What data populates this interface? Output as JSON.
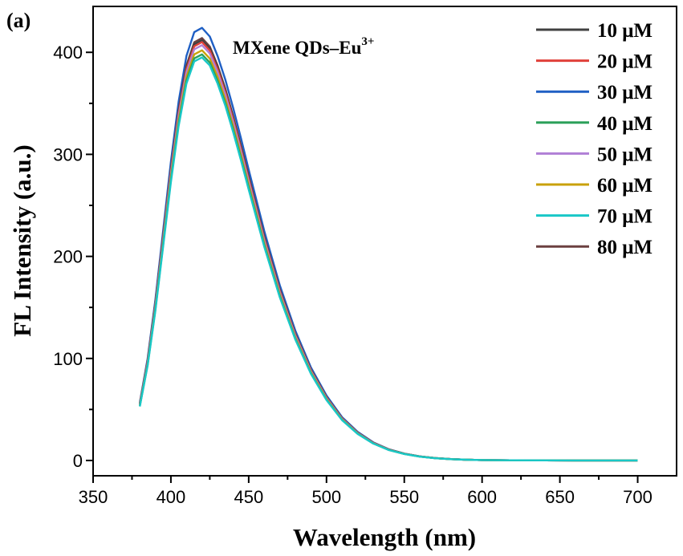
{
  "chart_data": {
    "type": "line",
    "panel_label": "(a)",
    "title": "",
    "xlabel": "Wavelength (nm)",
    "ylabel": "FL Intensity (a.u.)",
    "xlim": [
      350,
      725
    ],
    "ylim": [
      -15,
      445
    ],
    "xticks": [
      350,
      400,
      450,
      500,
      550,
      600,
      650,
      700
    ],
    "yticks": [
      0,
      100,
      200,
      300,
      400
    ],
    "annotation": {
      "text": "MXene QDs–Eu",
      "sup": "3+"
    },
    "legend_position": "top-right",
    "x": [
      380,
      385,
      390,
      395,
      400,
      405,
      410,
      415,
      420,
      425,
      430,
      435,
      440,
      445,
      450,
      460,
      470,
      480,
      490,
      500,
      510,
      520,
      530,
      540,
      550,
      560,
      570,
      580,
      590,
      600,
      620,
      640,
      660,
      680,
      700
    ],
    "base_profile": [
      0.134,
      0.235,
      0.37,
      0.53,
      0.69,
      0.83,
      0.935,
      0.99,
      1.0,
      0.98,
      0.935,
      0.88,
      0.815,
      0.745,
      0.672,
      0.53,
      0.405,
      0.3,
      0.215,
      0.15,
      0.1,
      0.066,
      0.042,
      0.026,
      0.016,
      0.0095,
      0.0055,
      0.0032,
      0.0018,
      0.001,
      0.0004,
      0.00015,
      6e-05,
      2e-05,
      0.0
    ],
    "series": [
      {
        "name": "10 μM",
        "peak": 412,
        "color": "#404040"
      },
      {
        "name": "20 μM",
        "peak": 410,
        "color": "#e0403a"
      },
      {
        "name": "30 μM",
        "peak": 424,
        "color": "#1f5fc4"
      },
      {
        "name": "40 μM",
        "peak": 398,
        "color": "#2ca05a"
      },
      {
        "name": "50 μM",
        "peak": 407,
        "color": "#b07fd6"
      },
      {
        "name": "60 μM",
        "peak": 402,
        "color": "#c9a10a"
      },
      {
        "name": "70 μM",
        "peak": 395,
        "color": "#19c7c7"
      },
      {
        "name": "80 μM",
        "peak": 414,
        "color": "#6b4040"
      }
    ]
  }
}
